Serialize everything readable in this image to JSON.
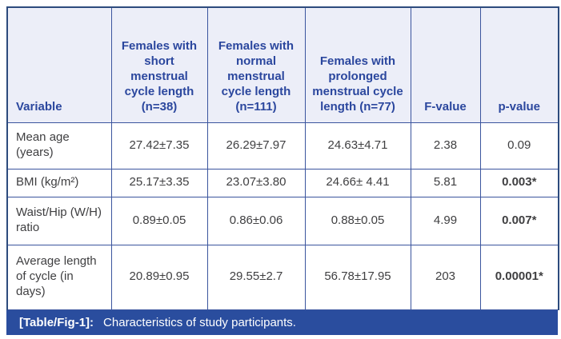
{
  "table": {
    "headers": [
      "Variable",
      "Females with short menstrual cycle length (n=38)",
      "Females with normal menstrual cycle length (n=111)",
      "Females with prolonged menstrual cycle length (n=77)",
      "F-value",
      "p-value"
    ],
    "rows": [
      {
        "variable": "Mean age (years)",
        "short": "27.42±7.35",
        "normal": "26.29±7.97",
        "prolonged": "24.63±4.71",
        "f_value": "2.38",
        "p_value": "0.09"
      },
      {
        "variable": "BMI (kg/m²)",
        "short": "25.17±3.35",
        "normal": "23.07±3.80",
        "prolonged": "24.66± 4.41",
        "f_value": "5.81",
        "p_value": "0.003*"
      },
      {
        "variable": "Waist/Hip (W/H) ratio",
        "short": "0.89±0.05",
        "normal": "0.86±0.06",
        "prolonged": "0.88±0.05",
        "f_value": "4.99",
        "p_value": "0.007*"
      },
      {
        "variable": "Average length of cycle (in days)",
        "short": "20.89±0.95",
        "normal": "29.55±2.7",
        "prolonged": "56.78±17.95",
        "f_value": "203",
        "p_value": "0.00001*"
      }
    ]
  },
  "caption": {
    "label": "[Table/Fig-1]:",
    "text": "Characteristics of study participants."
  },
  "colors": {
    "header_bg": "#eceef8",
    "header_text": "#2b479e",
    "inner_border": "#3b559e",
    "outer_border": "#2d4b7d",
    "caption_bg": "#2a4d9e",
    "caption_text": "#ffffff",
    "body_text": "#3f3f41"
  }
}
